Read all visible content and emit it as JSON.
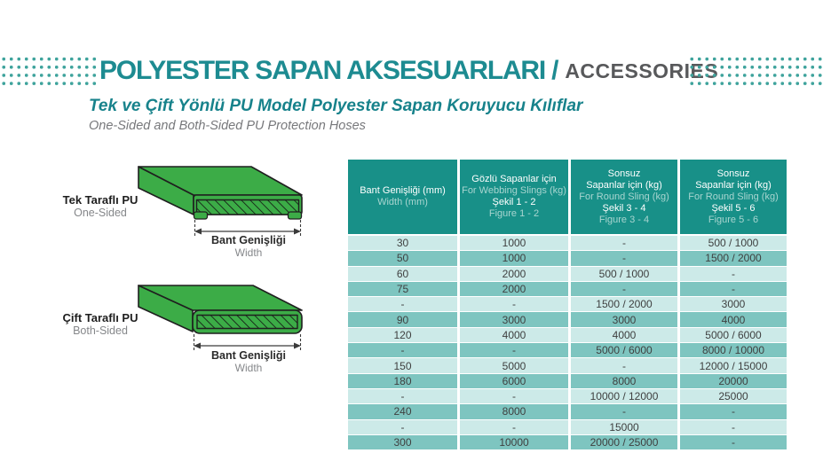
{
  "page": {
    "title_main": "POLYESTER SAPAN AKSESUARLARI /",
    "title_sub": "ACCESSORIES",
    "subtitle_tr": "Tek ve Çift Yönlü PU Model Polyester Sapan Koruyucu Kılıflar",
    "subtitle_en": "One-Sided and Both-Sided PU Protection Hoses"
  },
  "colors": {
    "accent_teal": "#1D8B91",
    "table_header_teal": "#189088",
    "row_light": "#CCEAE8",
    "row_dark": "#7EC5C0",
    "hose_green": "#3CAC47",
    "muted_gray": "#77787B",
    "dark_gray": "#58595B"
  },
  "diagrams": [
    {
      "label_tr": "Tek Taraflı PU",
      "label_en": "One-Sided",
      "dim_tr": "Bant Genişliği",
      "dim_en": "Width"
    },
    {
      "label_tr": "Çift Taraflı PU",
      "label_en": "Both-Sided",
      "dim_tr": "Bant Genişliği",
      "dim_en": "Width"
    }
  ],
  "table": {
    "header": [
      [
        {
          "text": "Bant Genişliği (mm)",
          "muted": false
        },
        {
          "text": "Width (mm)",
          "muted": true
        }
      ],
      [
        {
          "text": "Gözlü Sapanlar için",
          "muted": false
        },
        {
          "text": "For Webbing Slings (kg)",
          "muted": true
        },
        {
          "text": "Şekil 1 - 2",
          "muted": false
        },
        {
          "text": "Figure 1 - 2",
          "muted": true
        }
      ],
      [
        {
          "text": "Sonsuz",
          "muted": false
        },
        {
          "text": "Sapanlar için (kg)",
          "muted": false
        },
        {
          "text": "For Round Sling (kg)",
          "muted": true
        },
        {
          "text": "Şekil 3 - 4",
          "muted": false
        },
        {
          "text": "Figure 3 - 4",
          "muted": true
        }
      ],
      [
        {
          "text": "Sonsuz",
          "muted": false
        },
        {
          "text": "Sapanlar için (kg)",
          "muted": false
        },
        {
          "text": "For Round Sling (kg)",
          "muted": true
        },
        {
          "text": "Şekil 5 - 6",
          "muted": false
        },
        {
          "text": "Figure 5 - 6",
          "muted": true
        }
      ]
    ],
    "rows": [
      [
        "30",
        "1000",
        "-",
        "500 / 1000"
      ],
      [
        "50",
        "1000",
        "-",
        "1500 / 2000"
      ],
      [
        "60",
        "2000",
        "500 / 1000",
        "-"
      ],
      [
        "75",
        "2000",
        "-",
        "-"
      ],
      [
        "-",
        "-",
        "1500 / 2000",
        "3000"
      ],
      [
        "90",
        "3000",
        "3000",
        "4000"
      ],
      [
        "120",
        "4000",
        "4000",
        "5000 / 6000"
      ],
      [
        "-",
        "-",
        "5000 / 6000",
        "8000 / 10000"
      ],
      [
        "150",
        "5000",
        "-",
        "12000 / 15000"
      ],
      [
        "180",
        "6000",
        "8000",
        "20000"
      ],
      [
        "-",
        "-",
        "10000 / 12000",
        "25000"
      ],
      [
        "240",
        "8000",
        "-",
        "-"
      ],
      [
        "-",
        "-",
        "15000",
        "-"
      ],
      [
        "300",
        "10000",
        "20000 / 25000",
        "-"
      ]
    ]
  }
}
